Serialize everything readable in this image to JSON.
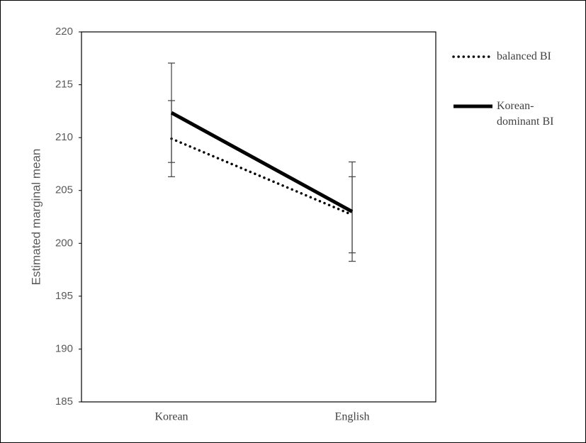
{
  "chart_data": {
    "type": "line",
    "y_label": "Estimated marginal mean",
    "categories": [
      "Korean",
      "English"
    ],
    "series": [
      {
        "name": "balanced BI",
        "color": "#000000",
        "line_style": "dotted",
        "values": [
          209.9,
          202.7
        ],
        "errors": [
          3.6,
          3.6
        ]
      },
      {
        "name": "Korean-dominant BI",
        "color": "#000000",
        "line_style": "solid",
        "values": [
          212.35,
          203.0
        ],
        "errors": [
          4.7,
          4.7
        ]
      }
    ],
    "ylim": [
      185,
      220
    ],
    "yticks": [
      185,
      190,
      195,
      200,
      205,
      210,
      215,
      220
    ],
    "grid": false,
    "legend": "right"
  }
}
